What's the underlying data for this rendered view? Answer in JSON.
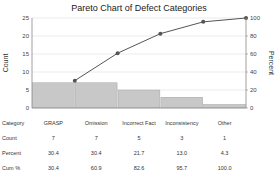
{
  "chart_data": {
    "type": "bar",
    "title": "Pareto Chart of Defect Categories",
    "categories": [
      "GRASP",
      "Omission",
      "Incorrect Fact",
      "Inconsistency",
      "Other"
    ],
    "series": [
      {
        "type": "bar",
        "color": "#c8c8c8",
        "values": [
          7,
          7,
          5,
          3,
          1
        ]
      },
      {
        "type": "line",
        "axis": "y2",
        "color": "#555555",
        "marker": "circle",
        "line_style": "solid",
        "values": [
          30.4,
          60.9,
          82.6,
          95.7,
          100.0
        ]
      }
    ],
    "ylabel": "Count",
    "y2label": "Percent",
    "ylim": [
      0,
      25
    ],
    "yticks": [
      0,
      5,
      10,
      15,
      20,
      25
    ],
    "y2lim": [
      0,
      100
    ],
    "y2ticks": [
      0,
      20,
      40,
      60,
      80,
      100
    ],
    "grid": true,
    "tick_labels": "y",
    "table_rows": [
      "Category",
      "Count",
      "Percent",
      "Cum %"
    ],
    "table_data": [
      [
        "GRASP",
        "Omission",
        "Incorrect Fact",
        "Inconsistency",
        "Other"
      ],
      [
        "7",
        "7",
        "5",
        "3",
        "1"
      ],
      [
        "30.4",
        "30.4",
        "21.7",
        "13.0",
        "4.3"
      ],
      [
        "30.4",
        "60.9",
        "82.6",
        "95.7",
        "100.0"
      ]
    ]
  }
}
